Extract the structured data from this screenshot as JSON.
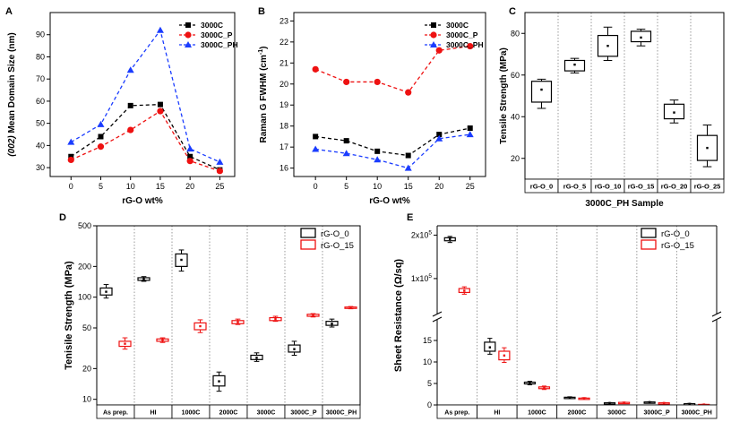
{
  "chart_data": [
    {
      "id": "A",
      "panel_label": "A",
      "type": "line",
      "xlabel": "rG-O wt%",
      "ylabel_prefix": "(002)",
      "ylabel_main": " Mean Domain Size (nm)",
      "x": [
        0,
        5,
        10,
        15,
        20,
        25
      ],
      "xticks": [
        "0",
        "5",
        "10",
        "15",
        "20",
        "25"
      ],
      "yticks": [
        30,
        40,
        50,
        60,
        70,
        80,
        90
      ],
      "ylim": [
        26,
        100
      ],
      "xlim": [
        -3.5,
        27.5
      ],
      "legend_position": "top-right",
      "series": [
        {
          "name": "3000C",
          "color": "#000000",
          "marker": "square",
          "values": [
            35,
            44,
            58,
            58.5,
            35,
            29
          ]
        },
        {
          "name": "3000C_P",
          "color": "#ee1111",
          "marker": "circle",
          "values": [
            33.5,
            39.5,
            47,
            55.5,
            33,
            28.5
          ]
        },
        {
          "name": "3000C_PH",
          "color": "#1a3cff",
          "marker": "triangle",
          "values": [
            41.5,
            49.5,
            74,
            92,
            38.5,
            32.5
          ]
        }
      ]
    },
    {
      "id": "B",
      "panel_label": "B",
      "type": "line",
      "xlabel": "rG-O wt%",
      "ylabel_main": "Raman G FWHM (cm",
      "ylabel_sup": "-1",
      "ylabel_end": ")",
      "x": [
        0,
        5,
        10,
        15,
        20,
        25
      ],
      "xticks": [
        "0",
        "5",
        "10",
        "15",
        "20",
        "25"
      ],
      "yticks": [
        16,
        17,
        18,
        19,
        20,
        21,
        22,
        23
      ],
      "ylim": [
        15.6,
        23.4
      ],
      "xlim": [
        -3.5,
        27.5
      ],
      "legend_position": "top-right",
      "series": [
        {
          "name": "3000C",
          "color": "#000000",
          "marker": "square",
          "values": [
            17.5,
            17.3,
            16.8,
            16.6,
            17.6,
            17.9
          ]
        },
        {
          "name": "3000C_P",
          "color": "#ee1111",
          "marker": "circle",
          "values": [
            20.7,
            20.1,
            20.1,
            19.6,
            21.6,
            21.8
          ]
        },
        {
          "name": "3000C_PH",
          "color": "#1a3cff",
          "marker": "triangle",
          "values": [
            16.9,
            16.7,
            16.4,
            16.0,
            17.4,
            17.6
          ]
        }
      ]
    },
    {
      "id": "C",
      "panel_label": "C",
      "type": "box",
      "xlabel": "3000C_PH Sample",
      "ylabel": "Tensile Strength (MPa)",
      "yticks": [
        20,
        40,
        60,
        80
      ],
      "ylim": [
        10,
        90
      ],
      "categories": [
        "rG-O_0",
        "rG-O_5",
        "rG-O_10",
        "rG-O_15",
        "rG-O_20",
        "rG-O_25"
      ],
      "boxes": [
        {
          "min": 44,
          "q1": 47,
          "mean": 53,
          "q3": 57,
          "max": 58
        },
        {
          "min": 61,
          "q1": 62,
          "mean": 65,
          "q3": 67,
          "max": 68
        },
        {
          "min": 67,
          "q1": 69,
          "mean": 74,
          "q3": 79,
          "max": 83
        },
        {
          "min": 74,
          "q1": 76,
          "mean": 78,
          "q3": 81,
          "max": 82
        },
        {
          "min": 37,
          "q1": 39,
          "mean": 42,
          "q3": 46,
          "max": 48
        },
        {
          "min": 16,
          "q1": 19,
          "mean": 25,
          "q3": 31,
          "max": 36
        }
      ]
    },
    {
      "id": "D",
      "panel_label": "D",
      "type": "box",
      "log_scale": true,
      "xlabel": "",
      "ylabel": "Tenisile Strength (MPa)",
      "yticks": [
        10,
        20,
        50,
        100,
        200,
        500
      ],
      "ylim": [
        8.8,
        500
      ],
      "categories": [
        "As prep.",
        "HI",
        "1000C",
        "2000C",
        "3000C",
        "3000C_P",
        "3000C_PH"
      ],
      "legend_position": "top-right",
      "series": [
        {
          "name": "rG-O_0",
          "color": "#000000",
          "boxes": [
            {
              "min": 98,
              "q1": 105,
              "mean": 113,
              "q3": 123,
              "max": 133
            },
            {
              "min": 143,
              "q1": 146,
              "mean": 150,
              "q3": 155,
              "max": 159
            },
            {
              "min": 180,
              "q1": 200,
              "mean": 232,
              "q3": 265,
              "max": 290
            },
            {
              "min": 12,
              "q1": 13.5,
              "mean": 15,
              "q3": 17,
              "max": 18.5
            },
            {
              "min": 23.5,
              "q1": 24.5,
              "mean": 25.5,
              "q3": 27,
              "max": 28.5
            },
            {
              "min": 27,
              "q1": 29,
              "mean": 31,
              "q3": 34,
              "max": 37
            },
            {
              "min": 51,
              "q1": 53,
              "mean": 55,
              "q3": 58,
              "max": 61
            }
          ]
        },
        {
          "name": "rG-O_15",
          "color": "#ee1111",
          "boxes": [
            {
              "min": 31,
              "q1": 33,
              "mean": 35,
              "q3": 37,
              "max": 40
            },
            {
              "min": 36,
              "q1": 37,
              "mean": 38,
              "q3": 39,
              "max": 40
            },
            {
              "min": 45,
              "q1": 48,
              "mean": 52,
              "q3": 56,
              "max": 60
            },
            {
              "min": 54,
              "q1": 55,
              "mean": 57,
              "q3": 59,
              "max": 61
            },
            {
              "min": 58,
              "q1": 59,
              "mean": 61,
              "q3": 63,
              "max": 65
            },
            {
              "min": 64,
              "q1": 65,
              "mean": 66,
              "q3": 68,
              "max": 69
            },
            {
              "min": 77,
              "q1": 78,
              "mean": 79,
              "q3": 80,
              "max": 81
            }
          ]
        }
      ]
    },
    {
      "id": "E",
      "panel_label": "E",
      "type": "box",
      "broken_axis": true,
      "xlabel": "",
      "ylabel": "Sheet Resistance (Ω/sq)",
      "lower_yticks": [
        0,
        5,
        10,
        15
      ],
      "lower_ylim": [
        0,
        17.5
      ],
      "upper_ylim": [
        40000,
        205000
      ],
      "upper_ticks": [
        {
          "value": 100000,
          "base": "1x10",
          "exp": "5"
        },
        {
          "value": 200000,
          "base": "2x10",
          "exp": "5"
        }
      ],
      "categories": [
        "As prep.",
        "HI",
        "1000C",
        "2000C",
        "3000C",
        "3000C_P",
        "3000C_PH"
      ],
      "legend_position": "top-right",
      "series": [
        {
          "name": "rG-O_0",
          "color": "#000000",
          "boxes": [
            {
              "min": 183000,
              "q1": 187000,
              "mean": 191000,
              "q3": 194000,
              "max": 197000
            },
            {
              "min": 11.8,
              "q1": 12.5,
              "mean": 13.4,
              "q3": 14.6,
              "max": 15.5
            },
            {
              "min": 4.7,
              "q1": 4.9,
              "mean": 5.1,
              "q3": 5.3,
              "max": 5.5
            },
            {
              "min": 1.5,
              "q1": 1.6,
              "mean": 1.7,
              "q3": 1.8,
              "max": 1.9
            },
            {
              "min": 0.35,
              "q1": 0.4,
              "mean": 0.45,
              "q3": 0.5,
              "max": 0.55
            },
            {
              "min": 0.55,
              "q1": 0.6,
              "mean": 0.65,
              "q3": 0.7,
              "max": 0.75
            },
            {
              "min": 0.15,
              "q1": 0.2,
              "mean": 0.25,
              "q3": 0.3,
              "max": 0.35
            }
          ]
        },
        {
          "name": "rG-O_15",
          "color": "#ee1111",
          "boxes": [
            {
              "min": 64000,
              "q1": 68000,
              "mean": 72000,
              "q3": 77000,
              "max": 81000
            },
            {
              "min": 9.9,
              "q1": 10.5,
              "mean": 11.5,
              "q3": 12.5,
              "max": 13.3
            },
            {
              "min": 3.6,
              "q1": 3.8,
              "mean": 4.0,
              "q3": 4.2,
              "max": 4.4
            },
            {
              "min": 1.4,
              "q1": 1.5,
              "mean": 1.55,
              "q3": 1.6,
              "max": 1.7
            },
            {
              "min": 0.45,
              "q1": 0.5,
              "mean": 0.55,
              "q3": 0.6,
              "max": 0.65
            },
            {
              "min": 0.35,
              "q1": 0.4,
              "mean": 0.45,
              "q3": 0.5,
              "max": 0.55
            },
            {
              "min": 0.05,
              "q1": 0.08,
              "mean": 0.1,
              "q3": 0.13,
              "max": 0.15
            }
          ]
        }
      ]
    }
  ]
}
